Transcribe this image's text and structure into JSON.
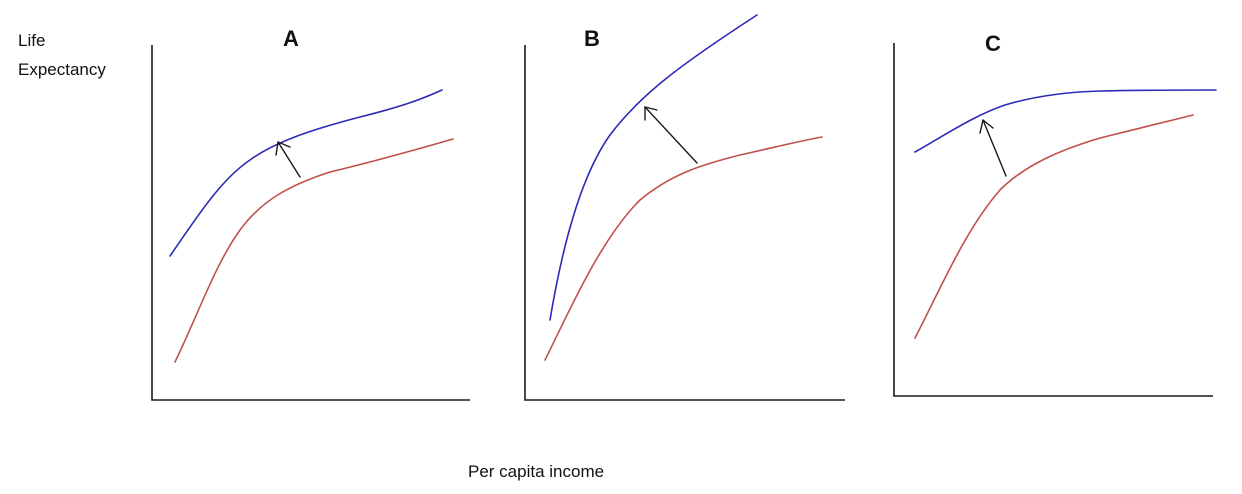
{
  "labels": {
    "ylabel_line1": "Life",
    "ylabel_line2": "Expectancy",
    "xlabel": "Per capita income"
  },
  "colors": {
    "before_curve": "#c0504d",
    "after_curve": "#2b2bb5",
    "axis": "#1a1a1a"
  },
  "panels": [
    {
      "id": "a",
      "title": "A"
    },
    {
      "id": "b",
      "title": "B"
    },
    {
      "id": "c",
      "title": "C"
    }
  ]
}
